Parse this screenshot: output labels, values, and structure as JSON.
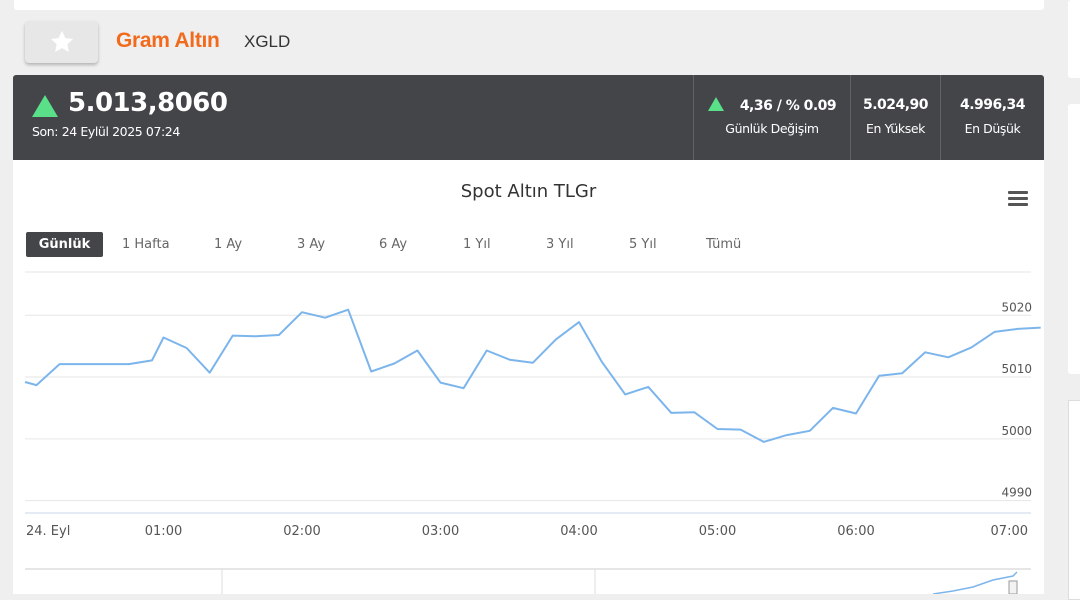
{
  "header": {
    "title": "Gram Altın",
    "symbol": "XGLD",
    "favorite_icon": "star-icon"
  },
  "quote": {
    "price": "5.013,8060",
    "last_update": "Son: 24 Eylül 2025 07:24",
    "direction": "up",
    "change": {
      "value": "4,36 / % 0.09",
      "label": "Günlük Değişim"
    },
    "high": {
      "value": "5.024,90",
      "label": "En Yüksek"
    },
    "low": {
      "value": "4.996,34",
      "label": "En Düşük"
    },
    "up_color": "#5be08a"
  },
  "toolbar": {
    "menu_icon": "hamburger-menu-icon",
    "ranges": [
      "Günlük",
      "1 Hafta",
      "1 Ay",
      "3 Ay",
      "6 Ay",
      "1 Yıl",
      "3 Yıl",
      "5 Yıl",
      "Tümü"
    ],
    "active_range": "Günlük"
  },
  "chart_data": {
    "type": "line",
    "title": "Spot Altın TLGr",
    "xlabel": "",
    "ylabel": "",
    "x_tick_labels": [
      "24. Eyl",
      "01:00",
      "02:00",
      "03:00",
      "04:00",
      "05:00",
      "06:00",
      "07:00"
    ],
    "y_tick_labels": [
      "4990",
      "5000",
      "5010",
      "5020"
    ],
    "ylim": [
      4988,
      5027
    ],
    "line_color": "#7cb5ec",
    "grid": true,
    "series": [
      {
        "x": [
          "00:00",
          "00:05",
          "00:15",
          "00:30",
          "00:45",
          "00:55",
          "01:00",
          "01:10",
          "01:20",
          "01:30",
          "01:40",
          "01:50",
          "02:00",
          "02:10",
          "02:20",
          "02:30",
          "02:40",
          "02:50",
          "03:00",
          "03:10",
          "03:20",
          "03:30",
          "03:40",
          "03:50",
          "04:00",
          "04:10",
          "04:20",
          "04:30",
          "04:40",
          "04:50",
          "05:00",
          "05:10",
          "05:20",
          "05:30",
          "05:40",
          "05:50",
          "06:00",
          "06:10",
          "06:20",
          "06:30",
          "06:40",
          "06:50",
          "07:00",
          "07:10",
          "07:20"
        ],
        "values": [
          5009.2,
          5008.7,
          5012.1,
          5012.1,
          5012.1,
          5012.7,
          5016.4,
          5014.7,
          5010.7,
          5016.7,
          5016.6,
          5016.8,
          5020.5,
          5019.6,
          5020.9,
          5010.9,
          5012.2,
          5014.3,
          5009.1,
          5008.2,
          5014.3,
          5012.8,
          5012.3,
          5016.1,
          5018.9,
          5012.4,
          5007.2,
          5008.4,
          5004.2,
          5004.3,
          5001.6,
          5001.5,
          4999.5,
          5000.6,
          5001.3,
          5005.0,
          5004.1,
          5010.2,
          5010.6,
          5014.0,
          5013.2,
          5014.8,
          5017.3,
          5017.8,
          5018.0
        ]
      }
    ]
  }
}
